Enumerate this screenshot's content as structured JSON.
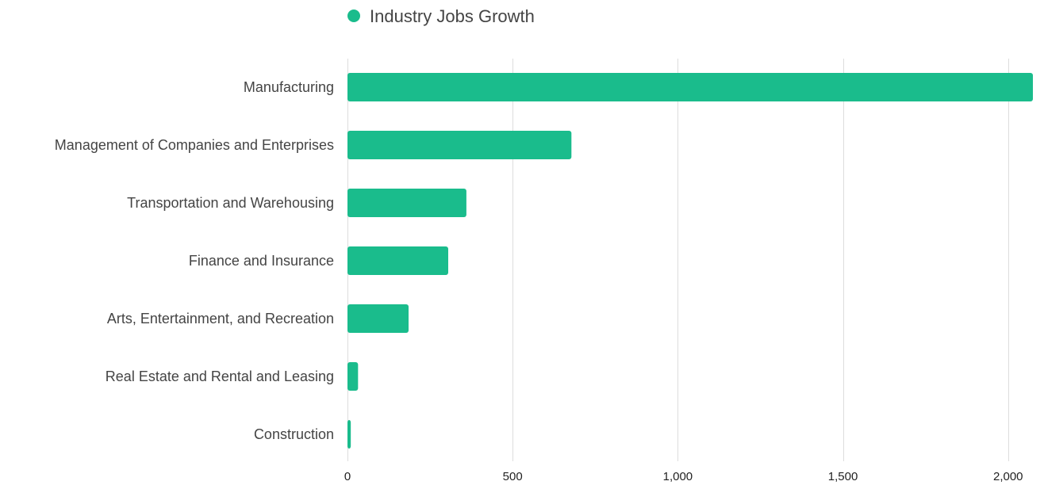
{
  "chart_data": {
    "type": "bar",
    "orientation": "horizontal",
    "title": "",
    "xlabel": "",
    "ylabel": "",
    "categories": [
      "Manufacturing",
      "Management of Companies and Enterprises",
      "Transportation and Warehousing",
      "Finance and Insurance",
      "Arts, Entertainment, and Recreation",
      "Real Estate and Rental and Leasing",
      "Construction"
    ],
    "series": [
      {
        "name": "Industry Jobs Growth",
        "color": "#1abc8c",
        "values": [
          2075,
          678,
          360,
          305,
          185,
          32,
          10
        ]
      }
    ],
    "xlim": [
      0,
      2075
    ],
    "x_ticks": [
      0,
      500,
      1000,
      1500,
      2000
    ],
    "x_tick_labels": [
      "0",
      "500",
      "1,000",
      "1,500",
      "2,000"
    ],
    "grid": true,
    "legend_position": "top"
  },
  "colors": {
    "bar": "#1abc8c",
    "grid": "#dddddd",
    "text": "#444444"
  }
}
